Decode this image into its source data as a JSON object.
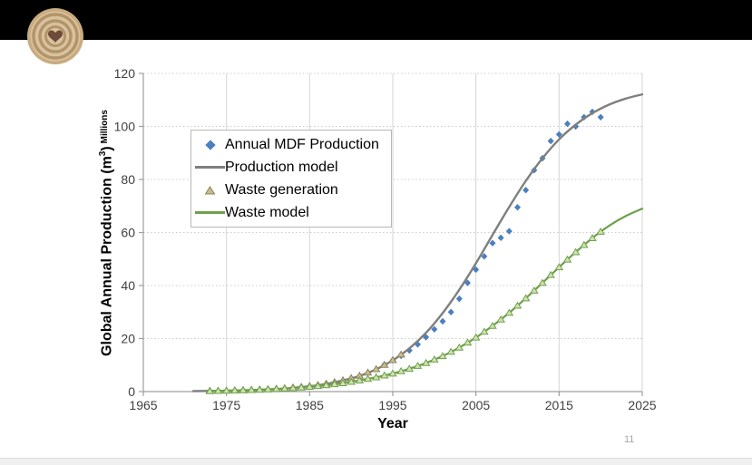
{
  "slide": {
    "page_number": "11"
  },
  "logo": {
    "name": "tree-rings-heart-logo",
    "ring_light": "#d9c29e",
    "ring_dark": "#b3946a",
    "heart_color": "#6e4a38"
  },
  "chart_data": {
    "type": "line",
    "title": "",
    "xlabel": "Year",
    "ylabel_main": "Global Annual Production (m",
    "ylabel_sup": "3",
    "ylabel_close": ")",
    "ylabel_unit": "Millions",
    "xlim": [
      1965,
      2025
    ],
    "ylim": [
      0,
      120
    ],
    "x_ticks": [
      1965,
      1975,
      1985,
      1995,
      2005,
      2015,
      2025
    ],
    "y_ticks": [
      0,
      20,
      40,
      60,
      80,
      100,
      120
    ],
    "grid": {
      "vertical": "solid",
      "horizontal": "dotted"
    },
    "legend_position": "upper-left-inside",
    "axis_color": "#9e9e9e",
    "grid_color": "#d6d6d6",
    "tick_label_color": "#3f3f3f",
    "series": [
      {
        "name": "Annual MDF Production",
        "type": "scatter",
        "marker": "diamond",
        "color": "#4a80c0",
        "points": [
          [
            1994,
            10.2
          ],
          [
            1995,
            11.8
          ],
          [
            1996,
            13.5
          ],
          [
            1997,
            15.5
          ],
          [
            1998,
            17.8
          ],
          [
            1999,
            20.5
          ],
          [
            2000,
            23.5
          ],
          [
            2001,
            26.5
          ],
          [
            2002,
            30
          ],
          [
            2003,
            35
          ],
          [
            2004,
            41
          ],
          [
            2005,
            46
          ],
          [
            2006,
            51
          ],
          [
            2007,
            56
          ],
          [
            2008,
            58
          ],
          [
            2009,
            60.5
          ],
          [
            2010,
            69.5
          ],
          [
            2011,
            76
          ],
          [
            2012,
            83.5
          ],
          [
            2013,
            88
          ],
          [
            2014,
            94.5
          ],
          [
            2015,
            97
          ],
          [
            2016,
            101
          ],
          [
            2017,
            100
          ],
          [
            2018,
            103.5
          ],
          [
            2019,
            105.5
          ],
          [
            2020,
            103.5
          ]
        ]
      },
      {
        "name": "Production model",
        "type": "line",
        "color": "#7f7f7f",
        "width": 2.4,
        "points": [
          [
            1971,
            0.2
          ],
          [
            1973,
            0.25
          ],
          [
            1975,
            0.3
          ],
          [
            1977,
            0.45
          ],
          [
            1979,
            0.65
          ],
          [
            1981,
            0.95
          ],
          [
            1983,
            1.4
          ],
          [
            1985,
            2.0
          ],
          [
            1987,
            2.9
          ],
          [
            1989,
            4.2
          ],
          [
            1991,
            5.9
          ],
          [
            1993,
            8.4
          ],
          [
            1995,
            11.8
          ],
          [
            1997,
            16.3
          ],
          [
            1999,
            22.2
          ],
          [
            2001,
            29.6
          ],
          [
            2003,
            38.4
          ],
          [
            2005,
            48.4
          ],
          [
            2007,
            59.1
          ],
          [
            2009,
            69.6
          ],
          [
            2011,
            79.5
          ],
          [
            2013,
            88.0
          ],
          [
            2015,
            95.1
          ],
          [
            2017,
            100.7
          ],
          [
            2019,
            105.0
          ],
          [
            2021,
            108.2
          ],
          [
            2023,
            110.5
          ],
          [
            2025,
            112.1
          ]
        ]
      },
      {
        "name": "Waste generation",
        "type": "scatter",
        "marker": "triangle",
        "color": "#8b8459",
        "fill": "#c6bc90",
        "points": [
          [
            1973,
            0.3
          ],
          [
            1974,
            0.35
          ],
          [
            1975,
            0.4
          ],
          [
            1976,
            0.5
          ],
          [
            1977,
            0.6
          ],
          [
            1978,
            0.7
          ],
          [
            1979,
            0.8
          ],
          [
            1980,
            0.95
          ],
          [
            1981,
            1.1
          ],
          [
            1982,
            1.3
          ],
          [
            1983,
            1.55
          ],
          [
            1984,
            1.8
          ],
          [
            1985,
            2.1
          ],
          [
            1986,
            2.5
          ],
          [
            1987,
            3.0
          ],
          [
            1988,
            3.6
          ],
          [
            1989,
            4.3
          ],
          [
            1990,
            5.1
          ],
          [
            1991,
            6.0
          ],
          [
            1992,
            7.2
          ],
          [
            1993,
            8.5
          ],
          [
            1994,
            10.1
          ],
          [
            1995,
            11.9
          ],
          [
            1996,
            14.0
          ]
        ]
      },
      {
        "name": "Waste model",
        "type": "line+markers",
        "color": "#6f9f4d",
        "width": 2.2,
        "marker": "triangle",
        "marker_fill": "#cfe3ad",
        "points": [
          [
            1973,
            0.2
          ],
          [
            1975,
            0.35
          ],
          [
            1977,
            0.5
          ],
          [
            1979,
            0.7
          ],
          [
            1981,
            1.0
          ],
          [
            1983,
            1.3
          ],
          [
            1985,
            1.8
          ],
          [
            1987,
            2.4
          ],
          [
            1989,
            3.2
          ],
          [
            1991,
            4.2
          ],
          [
            1993,
            5.4
          ],
          [
            1995,
            6.8
          ],
          [
            1997,
            8.6
          ],
          [
            1999,
            10.8
          ],
          [
            2001,
            13.4
          ],
          [
            2003,
            16.6
          ],
          [
            2005,
            20.4
          ],
          [
            2007,
            24.8
          ],
          [
            2009,
            29.7
          ],
          [
            2011,
            35.2
          ],
          [
            2013,
            41.0
          ],
          [
            2015,
            46.9
          ],
          [
            2017,
            52.6
          ],
          [
            2019,
            57.9
          ],
          [
            2021,
            62.5
          ],
          [
            2023,
            66.2
          ],
          [
            2025,
            69.0
          ]
        ],
        "marker_points": [
          [
            1973,
            0.2
          ],
          [
            1974,
            0.27
          ],
          [
            1975,
            0.35
          ],
          [
            1976,
            0.42
          ],
          [
            1977,
            0.5
          ],
          [
            1978,
            0.6
          ],
          [
            1979,
            0.7
          ],
          [
            1980,
            0.85
          ],
          [
            1981,
            1.0
          ],
          [
            1982,
            1.15
          ],
          [
            1983,
            1.3
          ],
          [
            1984,
            1.55
          ],
          [
            1985,
            1.8
          ],
          [
            1986,
            2.1
          ],
          [
            1987,
            2.4
          ],
          [
            1988,
            2.8
          ],
          [
            1989,
            3.2
          ],
          [
            1990,
            3.7
          ],
          [
            1991,
            4.2
          ],
          [
            1992,
            4.8
          ],
          [
            1993,
            5.4
          ],
          [
            1994,
            6.1
          ],
          [
            1995,
            6.8
          ],
          [
            1996,
            7.7
          ],
          [
            1997,
            8.6
          ],
          [
            1998,
            9.7
          ],
          [
            1999,
            10.8
          ],
          [
            2000,
            12.1
          ],
          [
            2001,
            13.4
          ],
          [
            2002,
            15.0
          ],
          [
            2003,
            16.6
          ],
          [
            2004,
            18.5
          ],
          [
            2005,
            20.4
          ],
          [
            2006,
            22.6
          ],
          [
            2007,
            24.8
          ],
          [
            2008,
            27.2
          ],
          [
            2009,
            29.7
          ],
          [
            2010,
            32.4
          ],
          [
            2011,
            35.2
          ],
          [
            2012,
            38.1
          ],
          [
            2013,
            41.0
          ],
          [
            2014,
            44.0
          ],
          [
            2015,
            46.9
          ],
          [
            2016,
            49.8
          ],
          [
            2017,
            52.6
          ],
          [
            2018,
            55.3
          ],
          [
            2019,
            57.9
          ],
          [
            2020,
            60.3
          ]
        ]
      }
    ]
  }
}
